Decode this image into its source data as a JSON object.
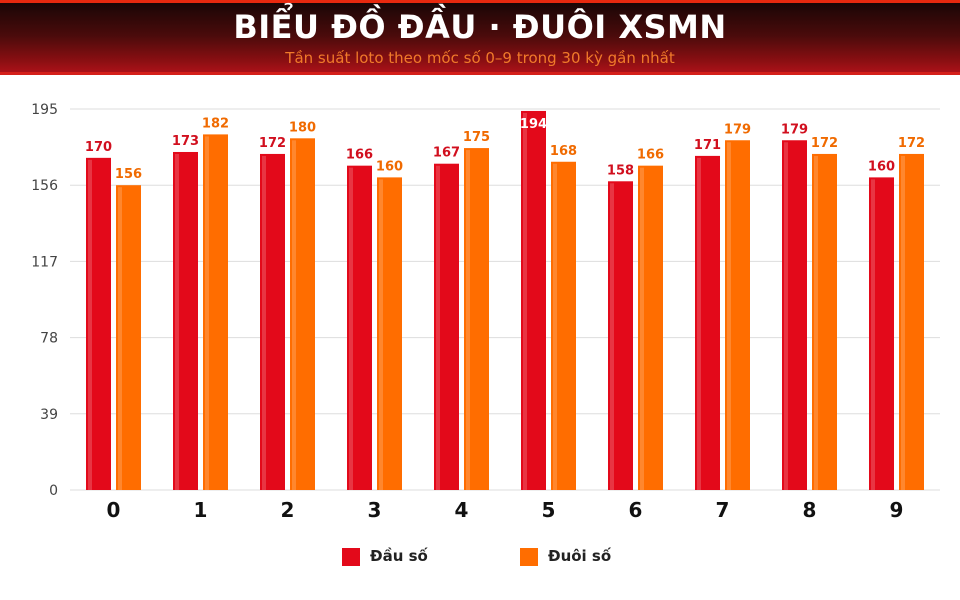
{
  "header": {
    "title": "BIỂU ĐỒ ĐẦU · ĐUÔI XSMN",
    "subtitle": "Tần suất loto theo mốc số 0–9 trong 30 kỳ gần nhất"
  },
  "colors": {
    "dau": "#e3091a",
    "duoi": "#ff6d00",
    "dau_label": "#d10f1e",
    "duoi_label": "#f06a00",
    "grid": "#dddddd",
    "axis_text": "#444444"
  },
  "chart_data": {
    "type": "bar",
    "title": "BIỂU ĐỒ ĐẦU · ĐUÔI XSMN",
    "subtitle": "Tần suất loto theo mốc số 0–9 trong 30 kỳ gần nhất",
    "xlabel": "",
    "ylabel": "",
    "categories": [
      "0",
      "1",
      "2",
      "3",
      "4",
      "5",
      "6",
      "7",
      "8",
      "9"
    ],
    "series": [
      {
        "name": "Đầu số",
        "values": [
          170,
          173,
          172,
          166,
          167,
          194,
          158,
          171,
          179,
          160
        ]
      },
      {
        "name": "Đuôi số",
        "values": [
          156,
          182,
          180,
          160,
          175,
          168,
          166,
          179,
          172,
          172
        ]
      }
    ],
    "ylim": [
      0,
      195
    ],
    "yticks": [
      0,
      39,
      78,
      117,
      156,
      195
    ],
    "grid": true,
    "legend": "bottom"
  }
}
